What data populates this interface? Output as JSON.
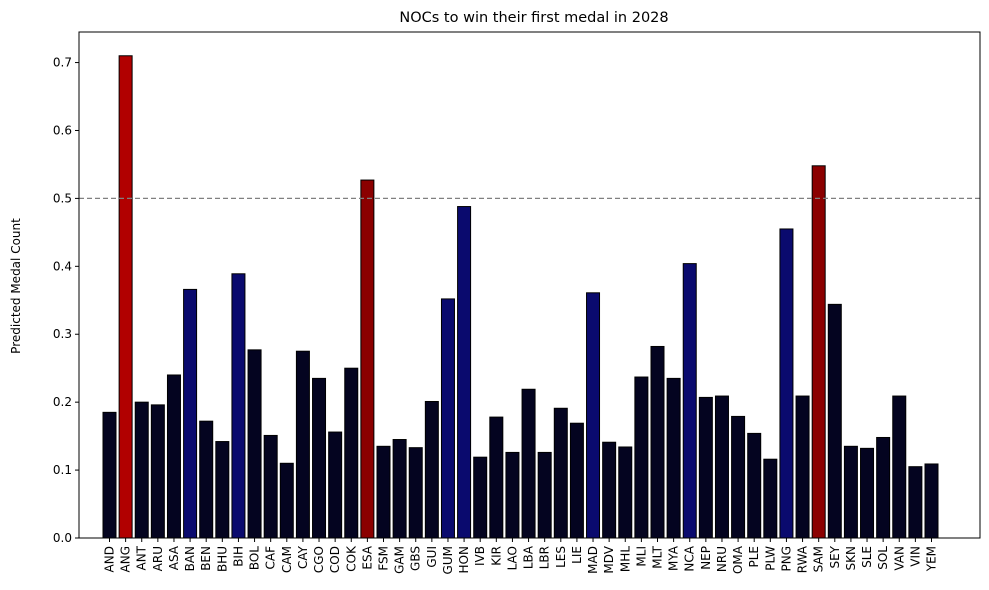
{
  "chart_data": {
    "type": "bar",
    "title": "NOCs to win their first medal in 2028",
    "xlabel": "",
    "ylabel": "Predicted Medal Count",
    "ylim": [
      0,
      0.745
    ],
    "yticks": [
      0.0,
      0.1,
      0.2,
      0.3,
      0.4,
      0.5,
      0.6,
      0.7
    ],
    "ytick_labels": [
      "0.0",
      "0.1",
      "0.2",
      "0.3",
      "0.4",
      "0.5",
      "0.6",
      "0.7"
    ],
    "grid": false,
    "reference_line": {
      "y": 0.5,
      "style": "dashed",
      "color": "#808080"
    },
    "categories": [
      "AND",
      "ANG",
      "ANT",
      "ARU",
      "ASA",
      "BAN",
      "BEN",
      "BHU",
      "BIH",
      "BOL",
      "CAF",
      "CAM",
      "CAY",
      "CGO",
      "COD",
      "COK",
      "ESA",
      "FSM",
      "GAM",
      "GBS",
      "GUI",
      "GUM",
      "HON",
      "IVB",
      "KIR",
      "LAO",
      "LBA",
      "LBR",
      "LES",
      "LIE",
      "MAD",
      "MDV",
      "MHL",
      "MLI",
      "MLT",
      "MYA",
      "NCA",
      "NEP",
      "NRU",
      "OMA",
      "PLE",
      "PLW",
      "PNG",
      "RWA",
      "SAM",
      "SEY",
      "SKN",
      "SLE",
      "SOL",
      "VAN",
      "VIN",
      "YEM"
    ],
    "values": [
      0.185,
      0.71,
      0.2,
      0.196,
      0.24,
      0.366,
      0.172,
      0.142,
      0.389,
      0.277,
      0.151,
      0.11,
      0.275,
      0.235,
      0.156,
      0.25,
      0.527,
      0.135,
      0.145,
      0.133,
      0.201,
      0.352,
      0.488,
      0.119,
      0.178,
      0.126,
      0.219,
      0.126,
      0.191,
      0.169,
      0.361,
      0.141,
      0.134,
      0.237,
      0.282,
      0.235,
      0.404,
      0.207,
      0.209,
      0.179,
      0.154,
      0.116,
      0.455,
      0.209,
      0.548,
      0.344,
      0.135,
      0.132,
      0.148,
      0.209,
      0.105,
      0.109
    ],
    "colors": {
      "above_threshold": "#8b0000",
      "above_threshold_max": "#b10000",
      "high": "#0a0a6e",
      "low": "#040420",
      "edge": "#000000"
    }
  }
}
